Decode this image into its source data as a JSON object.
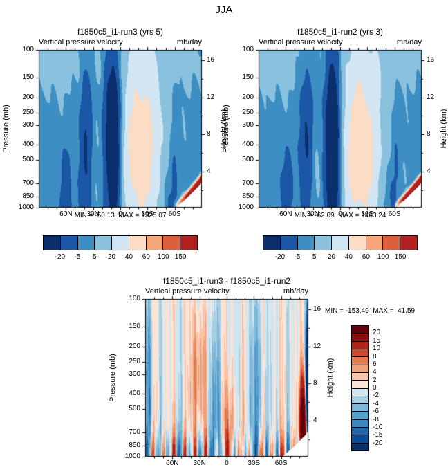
{
  "title": "JJA",
  "chart_data": [
    {
      "type": "contour",
      "title": "f1850c5_i1-run3 (yrs 5)",
      "subtitle": "Vertical pressure velocity",
      "units": "mb/day",
      "stats_text": "MIN = -50.13  MAX = 1325.07",
      "min": -50.13,
      "max": 1325.07,
      "ylabel_left": "Pressure (mb)",
      "ylabel_right": "Height (km)",
      "x_range_deg": [
        90,
        -90
      ],
      "x_ticks": {
        "labels": [
          "60N",
          "30N",
          "0",
          "30S",
          "60S"
        ],
        "lats": [
          60,
          30,
          0,
          -30,
          -60
        ]
      },
      "y_scale": "log-pressure",
      "y_range_mb": [
        100,
        1000
      ],
      "y_ticks_pressure": [
        100,
        150,
        200,
        250,
        300,
        400,
        500,
        700,
        850,
        1000
      ],
      "y_ticks_height_km": [
        16,
        12,
        8,
        4
      ],
      "levels": [
        -20,
        -5,
        5,
        20,
        40,
        60,
        100,
        150
      ],
      "palette": [
        "#0b2f6d",
        "#1c57a7",
        "#3c8ec3",
        "#8ac1de",
        "#d3e6f3",
        "#fbdcc5",
        "#f5a578",
        "#de5f3b",
        "#b0201f"
      ],
      "colorbar_labels": [
        "-20",
        "-5",
        "5",
        "20",
        "40",
        "60",
        "100",
        "150"
      ],
      "colorbar_orientation": "horizontal"
    },
    {
      "type": "contour",
      "title": "f1850c5_i1-run2 (yrs 3)",
      "subtitle": "Vertical pressure velocity",
      "units": "mb/day",
      "stats_text": "MIN = -62.09  MAX = 1463.24",
      "min": -62.09,
      "max": 1463.24,
      "ylabel_left": "Pressure (mb)",
      "ylabel_right": "Height (km)",
      "x_range_deg": [
        90,
        -90
      ],
      "x_ticks": {
        "labels": [
          "60N",
          "30N",
          "0",
          "30S",
          "60S"
        ],
        "lats": [
          60,
          30,
          0,
          -30,
          -60
        ]
      },
      "y_scale": "log-pressure",
      "y_range_mb": [
        100,
        1000
      ],
      "y_ticks_pressure": [
        100,
        150,
        200,
        250,
        300,
        400,
        500,
        700,
        850,
        1000
      ],
      "y_ticks_height_km": [
        16,
        12,
        8,
        4
      ],
      "levels": [
        -20,
        -5,
        5,
        20,
        40,
        60,
        100,
        150
      ],
      "palette": [
        "#0b2f6d",
        "#1c57a7",
        "#3c8ec3",
        "#8ac1de",
        "#d3e6f3",
        "#fbdcc5",
        "#f5a578",
        "#de5f3b",
        "#b0201f"
      ],
      "colorbar_labels": [
        "-20",
        "-5",
        "5",
        "20",
        "40",
        "60",
        "100",
        "150"
      ],
      "colorbar_orientation": "horizontal"
    },
    {
      "type": "contour",
      "title": "f1850c5_i1-run3 - f1850c5_i1-run2",
      "subtitle": "Vertical pressure velocity",
      "units": "mb/day",
      "stats_text": "MIN = -153.49  MAX =  41.59",
      "min": -153.49,
      "max": 41.59,
      "ylabel_left": "Pressure (mb)",
      "ylabel_right": "Height (km)",
      "x_range_deg": [
        90,
        -90
      ],
      "x_ticks": {
        "labels": [
          "60N",
          "30N",
          "0",
          "30S",
          "60S"
        ],
        "lats": [
          60,
          30,
          0,
          -30,
          -60
        ]
      },
      "y_scale": "log-pressure",
      "y_range_mb": [
        100,
        1000
      ],
      "y_ticks_pressure": [
        100,
        150,
        200,
        250,
        300,
        400,
        500,
        700,
        850,
        1000
      ],
      "y_ticks_height_km": [
        16,
        12,
        8,
        4
      ],
      "levels": [
        -20,
        -15,
        -10,
        -8,
        -6,
        -4,
        -2,
        0,
        2,
        4,
        6,
        8,
        10,
        15,
        20
      ],
      "palette": [
        "#08306b",
        "#0b4a94",
        "#2166ac",
        "#3787c0",
        "#57a0ce",
        "#7db8da",
        "#a6cee3",
        "#d1e5f0",
        "#fbe3d6",
        "#f9c4a9",
        "#f0a079",
        "#e27a51",
        "#cc4c33",
        "#b02418",
        "#8c0f10",
        "#67000d"
      ],
      "colorbar_labels": [
        "20",
        "15",
        "10",
        "8",
        "6",
        "4",
        "2",
        "0",
        "-2",
        "-4",
        "-6",
        "-8",
        "-10",
        "-15",
        "-20"
      ],
      "colorbar_orientation": "vertical"
    }
  ]
}
